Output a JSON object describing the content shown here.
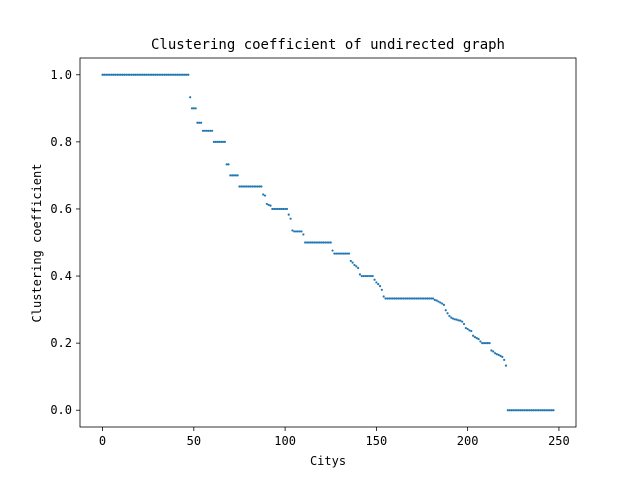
{
  "chart_data": {
    "type": "scatter",
    "title": "Clustering coefficient of undirected graph",
    "xlabel": "Citys",
    "ylabel": "Clustering coefficient",
    "xlim": [
      -12.35,
      259.35
    ],
    "ylim": [
      -0.05,
      1.05
    ],
    "xticks": [
      0,
      50,
      100,
      150,
      200,
      250
    ],
    "xtick_labels": [
      "0",
      "50",
      "100",
      "150",
      "200",
      "250"
    ],
    "yticks": [
      0.0,
      0.2,
      0.4,
      0.6,
      0.8,
      1.0
    ],
    "ytick_labels": [
      "0.0",
      "0.2",
      "0.4",
      "0.6",
      "0.8",
      "1.0"
    ],
    "grid": false,
    "legend": "none",
    "marker_color": "#1f77b4",
    "series": [
      {
        "name": "",
        "points": [
          [
            0,
            1.0
          ],
          [
            1,
            1.0
          ],
          [
            2,
            1.0
          ],
          [
            3,
            1.0
          ],
          [
            4,
            1.0
          ],
          [
            5,
            1.0
          ],
          [
            6,
            1.0
          ],
          [
            7,
            1.0
          ],
          [
            8,
            1.0
          ],
          [
            9,
            1.0
          ],
          [
            10,
            1.0
          ],
          [
            11,
            1.0
          ],
          [
            12,
            1.0
          ],
          [
            13,
            1.0
          ],
          [
            14,
            1.0
          ],
          [
            15,
            1.0
          ],
          [
            16,
            1.0
          ],
          [
            17,
            1.0
          ],
          [
            18,
            1.0
          ],
          [
            19,
            1.0
          ],
          [
            20,
            1.0
          ],
          [
            21,
            1.0
          ],
          [
            22,
            1.0
          ],
          [
            23,
            1.0
          ],
          [
            24,
            1.0
          ],
          [
            25,
            1.0
          ],
          [
            26,
            1.0
          ],
          [
            27,
            1.0
          ],
          [
            28,
            1.0
          ],
          [
            29,
            1.0
          ],
          [
            30,
            1.0
          ],
          [
            31,
            1.0
          ],
          [
            32,
            1.0
          ],
          [
            33,
            1.0
          ],
          [
            34,
            1.0
          ],
          [
            35,
            1.0
          ],
          [
            36,
            1.0
          ],
          [
            37,
            1.0
          ],
          [
            38,
            1.0
          ],
          [
            39,
            1.0
          ],
          [
            40,
            1.0
          ],
          [
            41,
            1.0
          ],
          [
            42,
            1.0
          ],
          [
            43,
            1.0
          ],
          [
            44,
            1.0
          ],
          [
            45,
            1.0
          ],
          [
            46,
            1.0
          ],
          [
            47,
            1.0
          ],
          [
            48,
            0.933
          ],
          [
            49,
            0.9
          ],
          [
            50,
            0.9
          ],
          [
            51,
            0.9
          ],
          [
            52,
            0.857
          ],
          [
            53,
            0.857
          ],
          [
            54,
            0.857
          ],
          [
            55,
            0.833
          ],
          [
            56,
            0.833
          ],
          [
            57,
            0.833
          ],
          [
            58,
            0.833
          ],
          [
            59,
            0.833
          ],
          [
            60,
            0.833
          ],
          [
            61,
            0.8
          ],
          [
            62,
            0.8
          ],
          [
            63,
            0.8
          ],
          [
            64,
            0.8
          ],
          [
            65,
            0.8
          ],
          [
            66,
            0.8
          ],
          [
            67,
            0.8
          ],
          [
            68,
            0.733
          ],
          [
            69,
            0.733
          ],
          [
            70,
            0.7
          ],
          [
            71,
            0.7
          ],
          [
            72,
            0.7
          ],
          [
            73,
            0.7
          ],
          [
            74,
            0.7
          ],
          [
            75,
            0.667
          ],
          [
            76,
            0.667
          ],
          [
            77,
            0.667
          ],
          [
            78,
            0.667
          ],
          [
            79,
            0.667
          ],
          [
            80,
            0.667
          ],
          [
            81,
            0.667
          ],
          [
            82,
            0.667
          ],
          [
            83,
            0.667
          ],
          [
            84,
            0.667
          ],
          [
            85,
            0.667
          ],
          [
            86,
            0.667
          ],
          [
            87,
            0.667
          ],
          [
            88,
            0.643
          ],
          [
            89,
            0.64
          ],
          [
            90,
            0.615
          ],
          [
            91,
            0.612
          ],
          [
            92,
            0.61
          ],
          [
            93,
            0.6
          ],
          [
            94,
            0.6
          ],
          [
            95,
            0.6
          ],
          [
            96,
            0.6
          ],
          [
            97,
            0.6
          ],
          [
            98,
            0.6
          ],
          [
            99,
            0.6
          ],
          [
            100,
            0.6
          ],
          [
            101,
            0.6
          ],
          [
            102,
            0.583
          ],
          [
            103,
            0.571
          ],
          [
            104,
            0.536
          ],
          [
            105,
            0.533
          ],
          [
            106,
            0.533
          ],
          [
            107,
            0.533
          ],
          [
            108,
            0.533
          ],
          [
            109,
            0.533
          ],
          [
            110,
            0.524
          ],
          [
            111,
            0.5
          ],
          [
            112,
            0.5
          ],
          [
            113,
            0.5
          ],
          [
            114,
            0.5
          ],
          [
            115,
            0.5
          ],
          [
            116,
            0.5
          ],
          [
            117,
            0.5
          ],
          [
            118,
            0.5
          ],
          [
            119,
            0.5
          ],
          [
            120,
            0.5
          ],
          [
            121,
            0.5
          ],
          [
            122,
            0.5
          ],
          [
            123,
            0.5
          ],
          [
            124,
            0.5
          ],
          [
            125,
            0.5
          ],
          [
            126,
            0.476
          ],
          [
            127,
            0.467
          ],
          [
            128,
            0.467
          ],
          [
            129,
            0.467
          ],
          [
            130,
            0.467
          ],
          [
            131,
            0.467
          ],
          [
            132,
            0.467
          ],
          [
            133,
            0.467
          ],
          [
            134,
            0.467
          ],
          [
            135,
            0.467
          ],
          [
            136,
            0.445
          ],
          [
            137,
            0.44
          ],
          [
            138,
            0.433
          ],
          [
            139,
            0.429
          ],
          [
            140,
            0.424
          ],
          [
            141,
            0.405
          ],
          [
            142,
            0.4
          ],
          [
            143,
            0.4
          ],
          [
            144,
            0.4
          ],
          [
            145,
            0.4
          ],
          [
            146,
            0.4
          ],
          [
            147,
            0.4
          ],
          [
            148,
            0.4
          ],
          [
            149,
            0.389
          ],
          [
            150,
            0.381
          ],
          [
            151,
            0.376
          ],
          [
            152,
            0.37
          ],
          [
            153,
            0.359
          ],
          [
            154,
            0.339
          ],
          [
            155,
            0.333
          ],
          [
            156,
            0.333
          ],
          [
            157,
            0.333
          ],
          [
            158,
            0.333
          ],
          [
            159,
            0.333
          ],
          [
            160,
            0.333
          ],
          [
            161,
            0.333
          ],
          [
            162,
            0.333
          ],
          [
            163,
            0.333
          ],
          [
            164,
            0.333
          ],
          [
            165,
            0.333
          ],
          [
            166,
            0.333
          ],
          [
            167,
            0.333
          ],
          [
            168,
            0.333
          ],
          [
            169,
            0.333
          ],
          [
            170,
            0.333
          ],
          [
            171,
            0.333
          ],
          [
            172,
            0.333
          ],
          [
            173,
            0.333
          ],
          [
            174,
            0.333
          ],
          [
            175,
            0.333
          ],
          [
            176,
            0.333
          ],
          [
            177,
            0.333
          ],
          [
            178,
            0.333
          ],
          [
            179,
            0.333
          ],
          [
            180,
            0.333
          ],
          [
            181,
            0.333
          ],
          [
            182,
            0.329
          ],
          [
            183,
            0.327
          ],
          [
            184,
            0.324
          ],
          [
            185,
            0.321
          ],
          [
            186,
            0.318
          ],
          [
            187,
            0.314
          ],
          [
            188,
            0.298
          ],
          [
            189,
            0.289
          ],
          [
            190,
            0.281
          ],
          [
            191,
            0.276
          ],
          [
            192,
            0.273
          ],
          [
            193,
            0.271
          ],
          [
            194,
            0.27
          ],
          [
            195,
            0.268
          ],
          [
            196,
            0.267
          ],
          [
            197,
            0.264
          ],
          [
            198,
            0.257
          ],
          [
            199,
            0.245
          ],
          [
            200,
            0.242
          ],
          [
            201,
            0.238
          ],
          [
            202,
            0.236
          ],
          [
            203,
            0.222
          ],
          [
            204,
            0.218
          ],
          [
            205,
            0.215
          ],
          [
            206,
            0.212
          ],
          [
            207,
            0.205
          ],
          [
            208,
            0.2
          ],
          [
            209,
            0.2
          ],
          [
            210,
            0.2
          ],
          [
            211,
            0.2
          ],
          [
            212,
            0.2
          ],
          [
            213,
            0.178
          ],
          [
            214,
            0.175
          ],
          [
            215,
            0.17
          ],
          [
            216,
            0.167
          ],
          [
            217,
            0.165
          ],
          [
            218,
            0.162
          ],
          [
            219,
            0.159
          ],
          [
            220,
            0.15
          ],
          [
            221,
            0.133
          ],
          [
            222,
            0.0
          ],
          [
            223,
            0.0
          ],
          [
            224,
            0.0
          ],
          [
            225,
            0.0
          ],
          [
            226,
            0.0
          ],
          [
            227,
            0.0
          ],
          [
            228,
            0.0
          ],
          [
            229,
            0.0
          ],
          [
            230,
            0.0
          ],
          [
            231,
            0.0
          ],
          [
            232,
            0.0
          ],
          [
            233,
            0.0
          ],
          [
            234,
            0.0
          ],
          [
            235,
            0.0
          ],
          [
            236,
            0.0
          ],
          [
            237,
            0.0
          ],
          [
            238,
            0.0
          ],
          [
            239,
            0.0
          ],
          [
            240,
            0.0
          ],
          [
            241,
            0.0
          ],
          [
            242,
            0.0
          ],
          [
            243,
            0.0
          ],
          [
            244,
            0.0
          ],
          [
            245,
            0.0
          ],
          [
            246,
            0.0
          ],
          [
            247,
            0.0
          ]
        ]
      }
    ]
  }
}
